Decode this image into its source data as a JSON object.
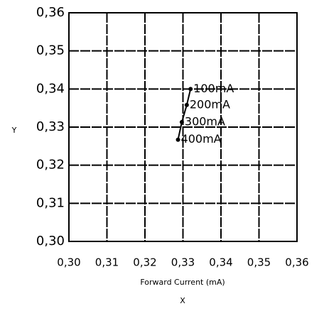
{
  "chart_data": {
    "type": "line",
    "xlabel": "X",
    "x_axis_title": "Forward Current (mA)",
    "ylabel": "Y",
    "x": [
      0.332,
      0.331,
      0.3297,
      0.3287
    ],
    "series": [
      {
        "color": "#000000",
        "values": [
          0.34,
          0.3358,
          0.3313,
          0.3267
        ],
        "point_labels": [
          "100mA",
          "200mA",
          "300mA",
          "400mA"
        ]
      }
    ],
    "xlim": [
      0.3,
      0.36
    ],
    "ylim": [
      0.3,
      0.36
    ],
    "xticks": [
      {
        "value": 0.3,
        "label": "0,30"
      },
      {
        "value": 0.31,
        "label": "0,31"
      },
      {
        "value": 0.32,
        "label": "0,32"
      },
      {
        "value": 0.33,
        "label": "0,33"
      },
      {
        "value": 0.34,
        "label": "0,34"
      },
      {
        "value": 0.35,
        "label": "0,35"
      },
      {
        "value": 0.36,
        "label": "0,36"
      }
    ],
    "yticks": [
      {
        "value": 0.3,
        "label": "0,30"
      },
      {
        "value": 0.31,
        "label": "0,31"
      },
      {
        "value": 0.32,
        "label": "0,32"
      },
      {
        "value": 0.33,
        "label": "0,33"
      },
      {
        "value": 0.34,
        "label": "0,34"
      },
      {
        "value": 0.35,
        "label": "0,35"
      },
      {
        "value": 0.36,
        "label": "0,36"
      }
    ],
    "grid": true
  }
}
